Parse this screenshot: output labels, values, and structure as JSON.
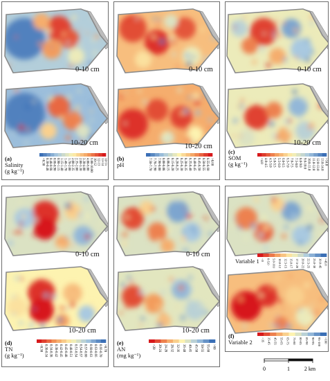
{
  "panels": [
    {
      "letter": "(a)",
      "var_line1": "Salinity",
      "var_line2": "(g kg⁻¹)",
      "depth_top": "0-10 cm",
      "depth_bottom": "10-20 cm",
      "palette": "rev",
      "classes": [
        "<0.30",
        "0.30-0.48",
        "0.48-0.68",
        "0.68-0.90",
        "0.90-1.15",
        "1.15-1.40",
        "1.40-1.70",
        "1.70-2.00",
        "2.00-2.35",
        "2.35-2.80",
        "2.80-3.30",
        "3.30-4.00",
        "4.00-6.00",
        "6.00-10.00",
        "10-12",
        "12-13",
        "13-14",
        "14-15"
      ]
    },
    {
      "letter": "(b)",
      "var_line1": "pH",
      "var_line2": "",
      "depth_top": "0-10 cm",
      "depth_bottom": "10-20 cm",
      "palette": "rev",
      "classes": [
        "7.50-7.70",
        "7.70-7.90",
        "7.90-8.00",
        "8.00-8.08",
        "8.08-8.15",
        "8.15-8.20",
        "8.20-8.25",
        "8.25-8.30",
        "8.30-8.35",
        "8.35-8.40",
        "8.40-8.45",
        "8.45-8.50",
        "8.50-8.55",
        "8.55-8.60",
        ">8.60"
      ]
    },
    {
      "letter": "(c)",
      "var_line1": "SOM",
      "var_line2": "(g kg⁻¹)",
      "depth_top": "0-10 cm",
      "depth_bottom": "10-20 cm",
      "palette": "fwd",
      "classes": [
        "<4.0",
        "4.0-4.5",
        "4.5-5.0",
        "5.0-5.5",
        "5.5-6.0",
        "6.0-6.5",
        "6.5-7.0",
        "7.0-7.5",
        "7.5-8.0",
        "8.0-9.0",
        "9.0-10.0",
        "10.0-11.0",
        "11.0-12.0",
        "12.0-13.0",
        "13.0-14.0",
        ">14.0"
      ]
    },
    {
      "letter": "(d)",
      "var_line1": "TN",
      "var_line2": "(g kg⁻¹)",
      "depth_top": "0-10 cm",
      "depth_bottom": "10-20 cm",
      "palette": "fwd",
      "classes": [
        "<0.30",
        "0.30-0.34",
        "0.34-0.38",
        "0.38-0.42",
        "0.42-0.45",
        "0.45-0.48",
        "0.48-0.51",
        "0.51-0.54",
        "0.54-0.57",
        "0.57-0.60",
        "0.60-0.63",
        "0.63-0.66",
        "0.66-0.70",
        ">0.70"
      ]
    },
    {
      "letter": "(e)",
      "var_line1": "AN",
      "var_line2": "(mg kg⁻¹)",
      "depth_top": "0-10 cm",
      "depth_bottom": "10-20 cm",
      "palette": "fwd",
      "classes": [
        "<20",
        "20-24",
        "24-28",
        "28-32",
        "32-36",
        "36-40",
        "40-45",
        "45-50",
        "50-55",
        "55-60",
        ">60"
      ]
    },
    {
      "letter": "(f)",
      "var_line1": "Variable 1",
      "var_line2": "Variable 2",
      "depth_top": "",
      "depth_bottom": "",
      "palette": "fwd",
      "classes": [
        "<0",
        "0-5.0",
        "5.0-10.0",
        "10.0-12.5",
        "12.5-15.0",
        "15.0-17.5",
        "17.5-20.0",
        "20.0-22.5",
        "22.5-25.0",
        "25.0-30.0",
        "30.0-45.0",
        ">45.0"
      ],
      "classes2": [
        "<35",
        "35-45",
        "45-55",
        "55-65",
        "65-75",
        "75-80",
        "80-85",
        "85-90",
        "90-95",
        "95-100",
        ">100"
      ]
    }
  ],
  "scale_bar": {
    "labels": [
      "0",
      "1",
      "2 km"
    ]
  },
  "colors": {
    "red": "#d7191c",
    "orange": "#f39b5c",
    "yellow": "#fdf3b0",
    "lightblue": "#a9c9e0",
    "blue": "#3b6fb6"
  }
}
